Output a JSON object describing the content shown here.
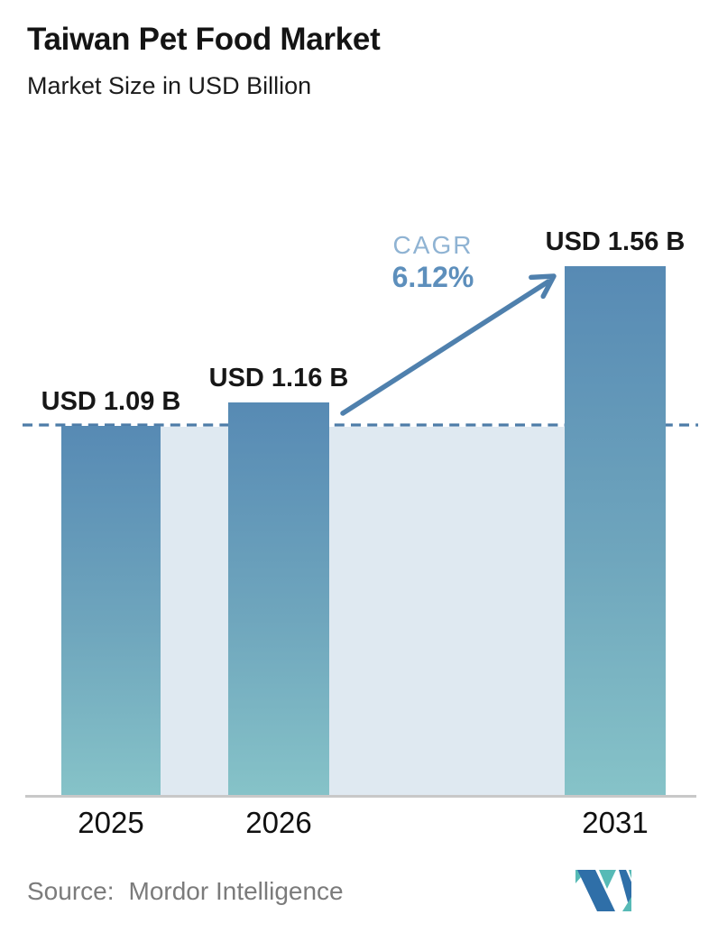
{
  "header": {
    "title": "Taiwan Pet Food Market",
    "subtitle": "Market Size in USD Billion"
  },
  "chart_data": {
    "type": "bar",
    "title": "Taiwan Pet Food Market",
    "subtitle": "Market Size in USD Billion",
    "ylabel": "USD Billion",
    "xlabel": "",
    "categories": [
      "2025",
      "2026",
      "2031"
    ],
    "values": [
      1.09,
      1.16,
      1.56
    ],
    "value_labels": [
      "USD 1.09 B",
      "USD 1.16 B",
      "USD 1.56 B"
    ],
    "ylim": [
      0,
      1.7
    ],
    "grid": false,
    "legend": "none",
    "annotations": {
      "cagr_label": "CAGR",
      "cagr_value": "6.12%",
      "dashed_reference_value": 1.09,
      "arrow": "from top of 2026 bar to top of 2031 bar"
    },
    "colors": {
      "bar_top": "#578ab4",
      "bar_mid": "#6fa6bd",
      "bar_bottom": "#86c3c8",
      "band": "#dfe9f1",
      "dashed_line": "#4d7ca8",
      "arrow": "#4f80ad",
      "cagr_label": "#8fb3d3",
      "cagr_value": "#5d8fbc",
      "axis": "#c8c8c8",
      "logo_blue": "#2f6fa8",
      "logo_teal": "#57bab6"
    }
  },
  "footer": {
    "source_label": "Source:",
    "source_value": "Mordor Intelligence",
    "logo_name": "mordor-intelligence-logo"
  }
}
